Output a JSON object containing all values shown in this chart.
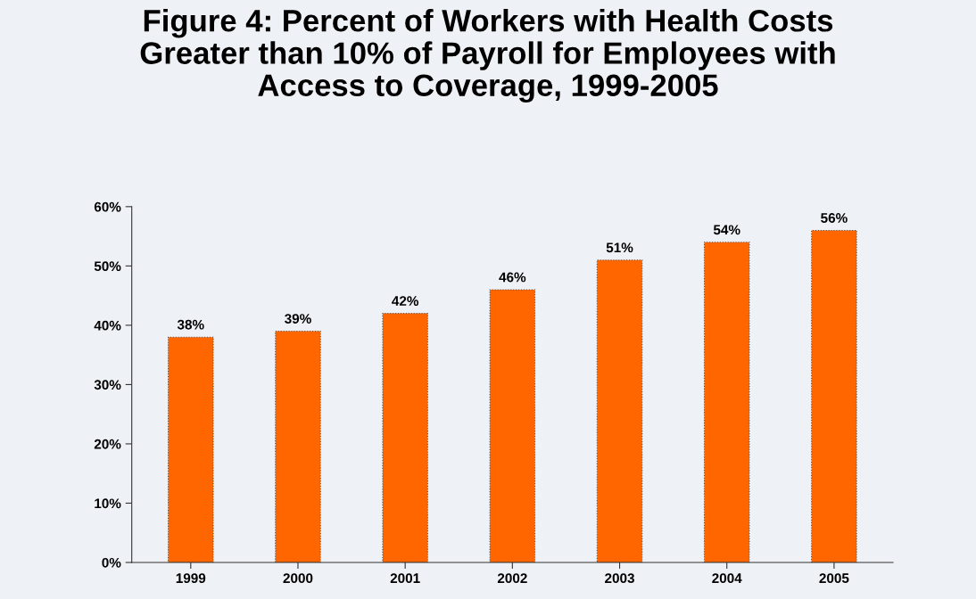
{
  "chart_data": {
    "type": "bar",
    "title": "Figure 4: Percent of Workers with Health Costs\nGreater than 10% of Payroll for Employees with\nAccess to Coverage, 1999-2005",
    "categories": [
      "1999",
      "2000",
      "2001",
      "2002",
      "2003",
      "2004",
      "2005"
    ],
    "values": [
      38,
      39,
      42,
      46,
      51,
      54,
      56
    ],
    "value_labels": [
      "38%",
      "39%",
      "42%",
      "46%",
      "51%",
      "54%",
      "56%"
    ],
    "color": "#ff6600",
    "ylim": [
      0,
      60
    ],
    "yticks": [
      {
        "value": 0,
        "label": "0%"
      },
      {
        "value": 10,
        "label": "10%"
      },
      {
        "value": 20,
        "label": "20%"
      },
      {
        "value": 30,
        "label": "30%"
      },
      {
        "value": 40,
        "label": "40%"
      },
      {
        "value": 50,
        "label": "50%"
      },
      {
        "value": 60,
        "label": "60%"
      }
    ],
    "grid": false,
    "legend": false
  }
}
